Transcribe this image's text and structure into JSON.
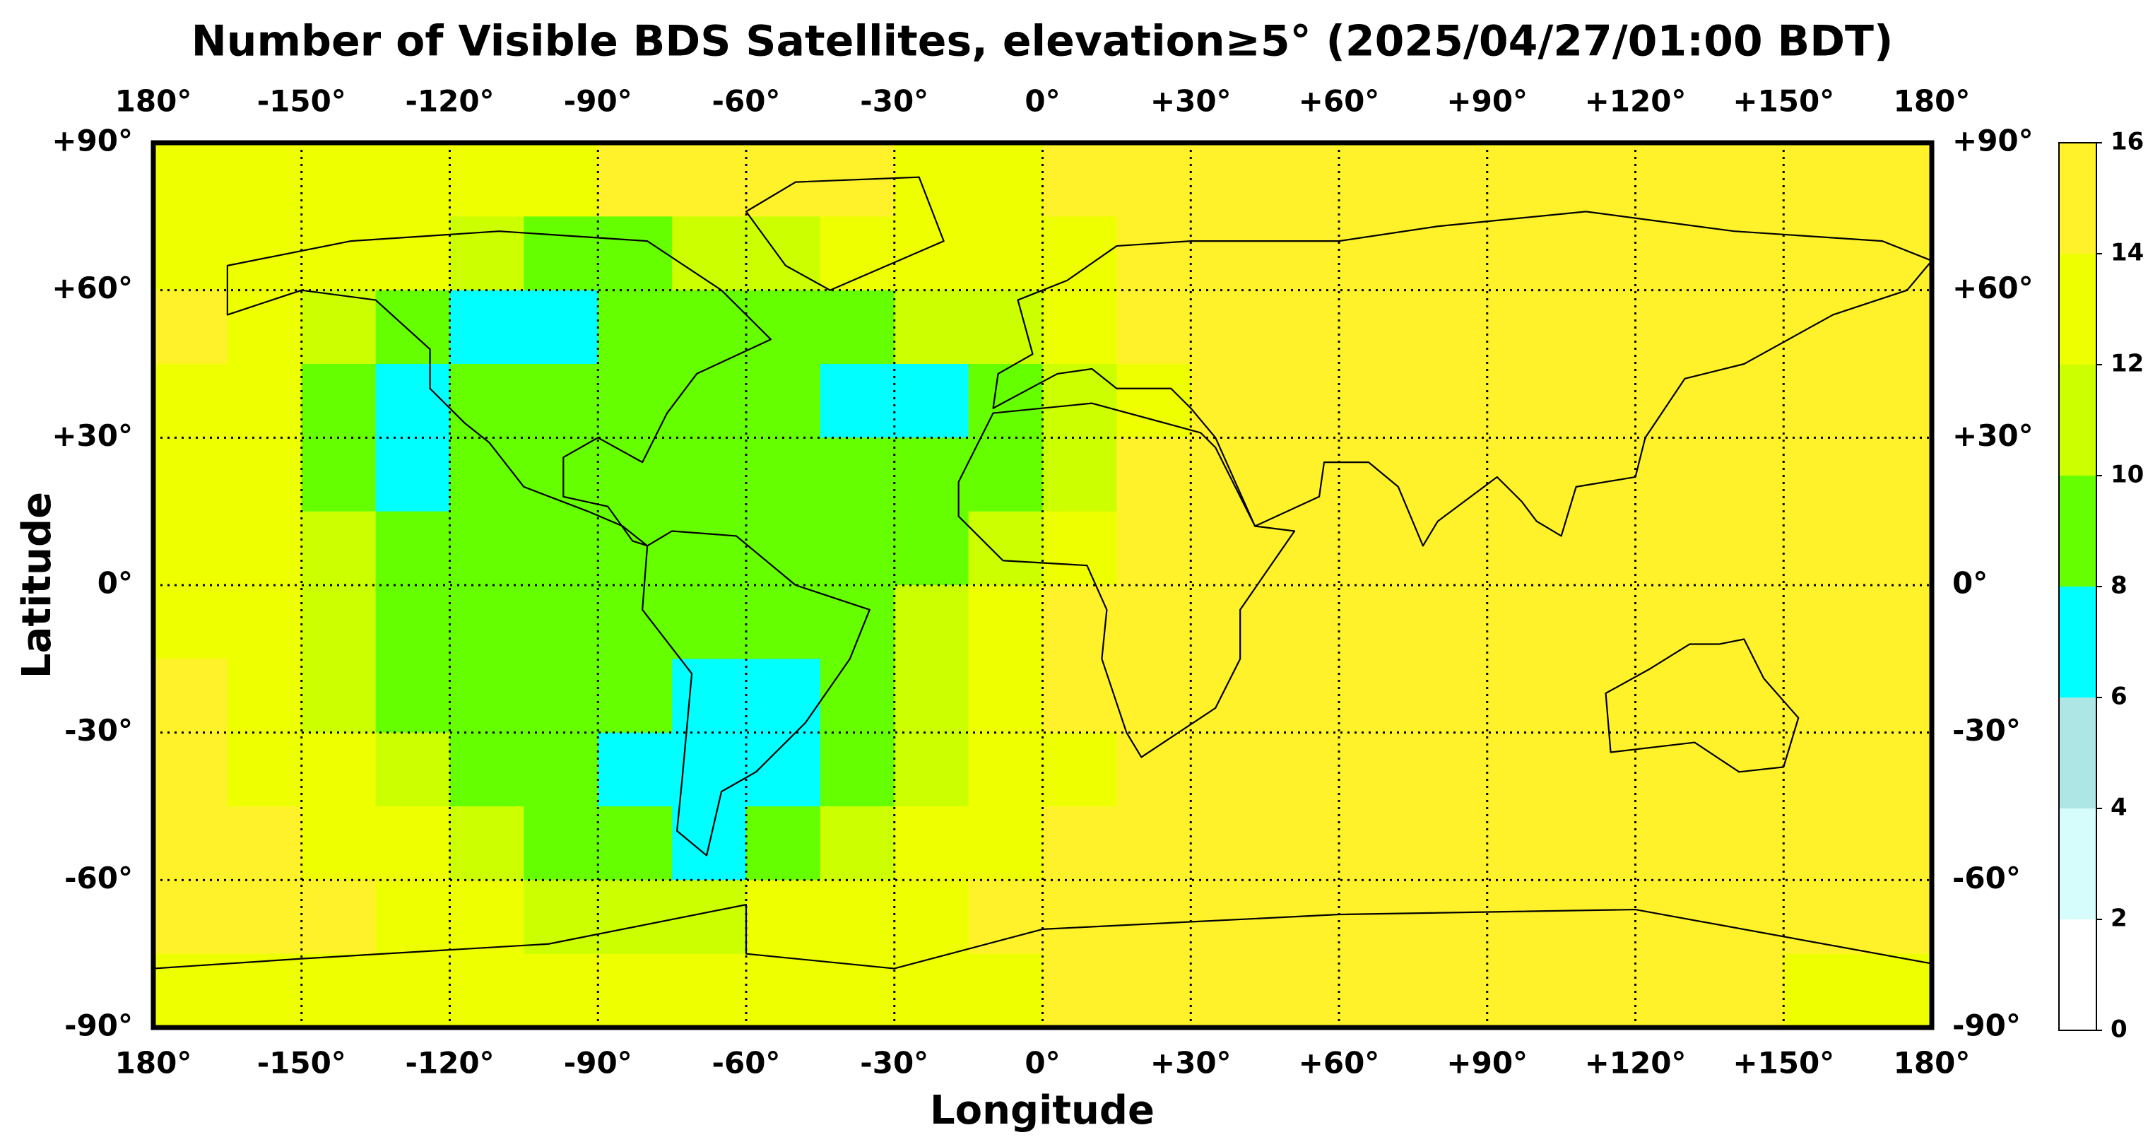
{
  "chart_data": {
    "type": "heatmap-map",
    "title": "Number of Visible BDS Satellites, elevation≥5° (2025/04/27/01:00 BDT)",
    "x_label": "Longitude",
    "y_label": "Latitude",
    "xlim": [
      -180,
      180
    ],
    "ylim": [
      -90,
      90
    ],
    "xticks": [
      {
        "value": -180,
        "label": "180°"
      },
      {
        "value": -150,
        "label": "-150°"
      },
      {
        "value": -120,
        "label": "-120°"
      },
      {
        "value": -90,
        "label": "-90°"
      },
      {
        "value": -60,
        "label": "-60°"
      },
      {
        "value": -30,
        "label": "-30°"
      },
      {
        "value": 0,
        "label": "0°"
      },
      {
        "value": 30,
        "label": "+30°"
      },
      {
        "value": 60,
        "label": "+60°"
      },
      {
        "value": 90,
        "label": "+90°"
      },
      {
        "value": 120,
        "label": "+120°"
      },
      {
        "value": 150,
        "label": "+150°"
      },
      {
        "value": 180,
        "label": "180°"
      }
    ],
    "yticks": [
      {
        "value": 90,
        "label": "+90°"
      },
      {
        "value": 60,
        "label": "+60°"
      },
      {
        "value": 30,
        "label": "+30°"
      },
      {
        "value": 0,
        "label": "0°"
      },
      {
        "value": -30,
        "label": "-30°"
      },
      {
        "value": -60,
        "label": "-60°"
      },
      {
        "value": -90,
        "label": "-90°"
      }
    ],
    "grid": true,
    "values": [
      [
        13,
        13,
        13,
        13,
        13,
        13,
        15,
        15,
        15,
        15,
        13,
        13,
        15,
        15,
        15,
        15,
        15,
        15,
        15,
        15,
        15,
        15,
        15,
        15
      ],
      [
        13,
        13,
        13,
        13,
        11,
        9,
        9,
        11,
        11,
        13,
        13,
        13,
        13,
        15,
        15,
        15,
        15,
        15,
        15,
        15,
        15,
        15,
        15,
        15
      ],
      [
        15,
        13,
        11,
        9,
        7,
        7,
        9,
        9,
        9,
        9,
        11,
        11,
        13,
        15,
        15,
        15,
        15,
        15,
        15,
        15,
        15,
        15,
        15,
        15
      ],
      [
        13,
        13,
        9,
        7,
        9,
        9,
        9,
        9,
        9,
        7,
        7,
        9,
        11,
        13,
        15,
        15,
        15,
        15,
        15,
        15,
        15,
        15,
        15,
        15
      ],
      [
        13,
        13,
        9,
        7,
        9,
        9,
        9,
        9,
        9,
        9,
        9,
        9,
        11,
        15,
        15,
        15,
        15,
        15,
        15,
        15,
        15,
        15,
        15,
        15
      ],
      [
        13,
        13,
        11,
        9,
        9,
        9,
        9,
        9,
        9,
        9,
        9,
        11,
        13,
        15,
        15,
        15,
        15,
        15,
        15,
        15,
        15,
        15,
        15,
        15
      ],
      [
        13,
        13,
        11,
        9,
        9,
        9,
        9,
        9,
        9,
        9,
        11,
        13,
        15,
        15,
        15,
        15,
        15,
        15,
        15,
        15,
        15,
        15,
        15,
        15
      ],
      [
        15,
        13,
        11,
        9,
        9,
        9,
        9,
        7,
        7,
        9,
        11,
        13,
        15,
        15,
        15,
        15,
        15,
        15,
        15,
        15,
        15,
        15,
        15,
        15
      ],
      [
        15,
        13,
        13,
        11,
        9,
        9,
        7,
        7,
        7,
        9,
        11,
        13,
        13,
        15,
        15,
        15,
        15,
        15,
        15,
        15,
        15,
        15,
        15,
        15
      ],
      [
        15,
        15,
        13,
        13,
        11,
        9,
        9,
        7,
        9,
        11,
        13,
        13,
        15,
        15,
        15,
        15,
        15,
        15,
        15,
        15,
        15,
        15,
        15,
        15
      ],
      [
        15,
        15,
        15,
        13,
        13,
        11,
        11,
        11,
        13,
        13,
        13,
        15,
        15,
        15,
        15,
        15,
        15,
        15,
        15,
        15,
        15,
        15,
        15,
        15
      ],
      [
        13,
        13,
        13,
        13,
        13,
        13,
        13,
        13,
        13,
        13,
        13,
        13,
        15,
        15,
        15,
        15,
        15,
        15,
        15,
        15,
        15,
        15,
        13,
        13
      ]
    ],
    "colorbar": {
      "ticks": [
        0,
        2,
        4,
        6,
        8,
        10,
        12,
        14,
        16
      ],
      "colors": [
        "#ffffff",
        "#d6fcfc",
        "#aee6e6",
        "#00ffff",
        "#66ff00",
        "#ccff00",
        "#eeff00",
        "#fff22a"
      ]
    }
  }
}
